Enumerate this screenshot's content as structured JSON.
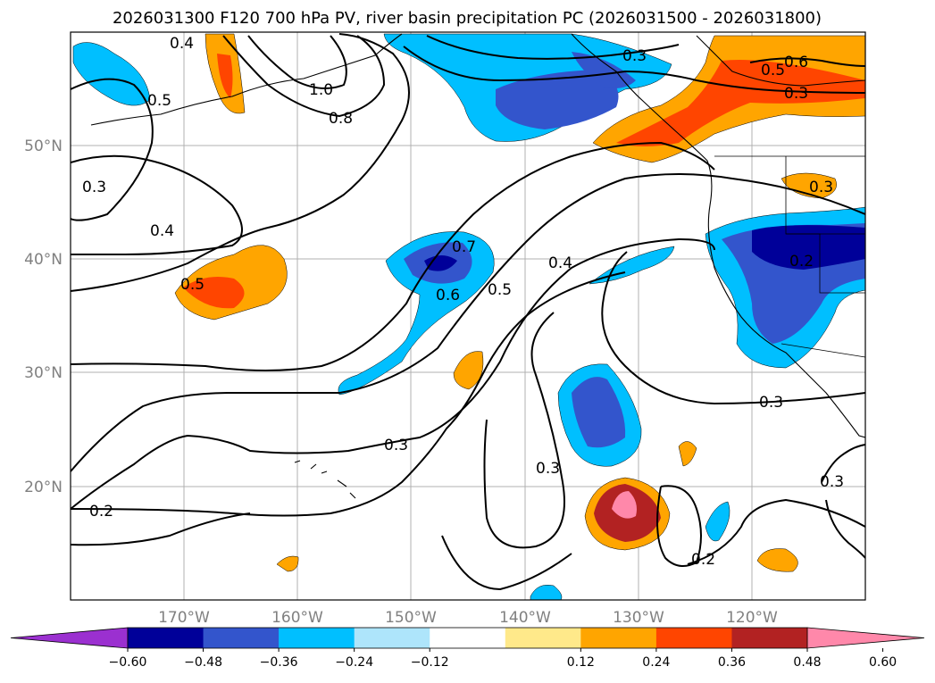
{
  "title": "2026031300 F120 700 hPa PV, river basin precipitation PC (2026031500 - 2026031800)",
  "map": {
    "projection": "PlateCarree",
    "region": "North Pacific",
    "lon_range": [
      -180,
      -110
    ],
    "lat_range": [
      10,
      60
    ],
    "grid": true,
    "lon_labels": [
      "170°W",
      "160°W",
      "150°W",
      "140°W",
      "130°W",
      "120°W"
    ],
    "lat_labels": [
      "50°N",
      "40°N",
      "30°N",
      "20°N"
    ],
    "contour_field": "700 hPa PV",
    "contour_labels": [
      "0.4",
      "0.5",
      "1.0",
      "0.8",
      "0.3",
      "0.3",
      "0.6",
      "0.5",
      "0.3",
      "0.3",
      "0.4",
      "0.5",
      "0.7",
      "0.6",
      "0.5",
      "0.4",
      "0.2",
      "0.3",
      "0.3",
      "0.3",
      "0.2",
      "0.3",
      "0.2"
    ]
  },
  "colorbar": {
    "ticks": [
      "−0.60",
      "−0.48",
      "−0.36",
      "−0.24",
      "−0.12",
      "0.12",
      "0.24",
      "0.36",
      "0.48",
      "0.60"
    ],
    "colors": [
      "#9b30d0",
      "#000099",
      "#3355cc",
      "#00bfff",
      "#aee5fb",
      "#ffffff",
      "#ffe98a",
      "#ffa500",
      "#ff4500",
      "#b22222",
      "#ff88aa"
    ],
    "extend": "both"
  }
}
